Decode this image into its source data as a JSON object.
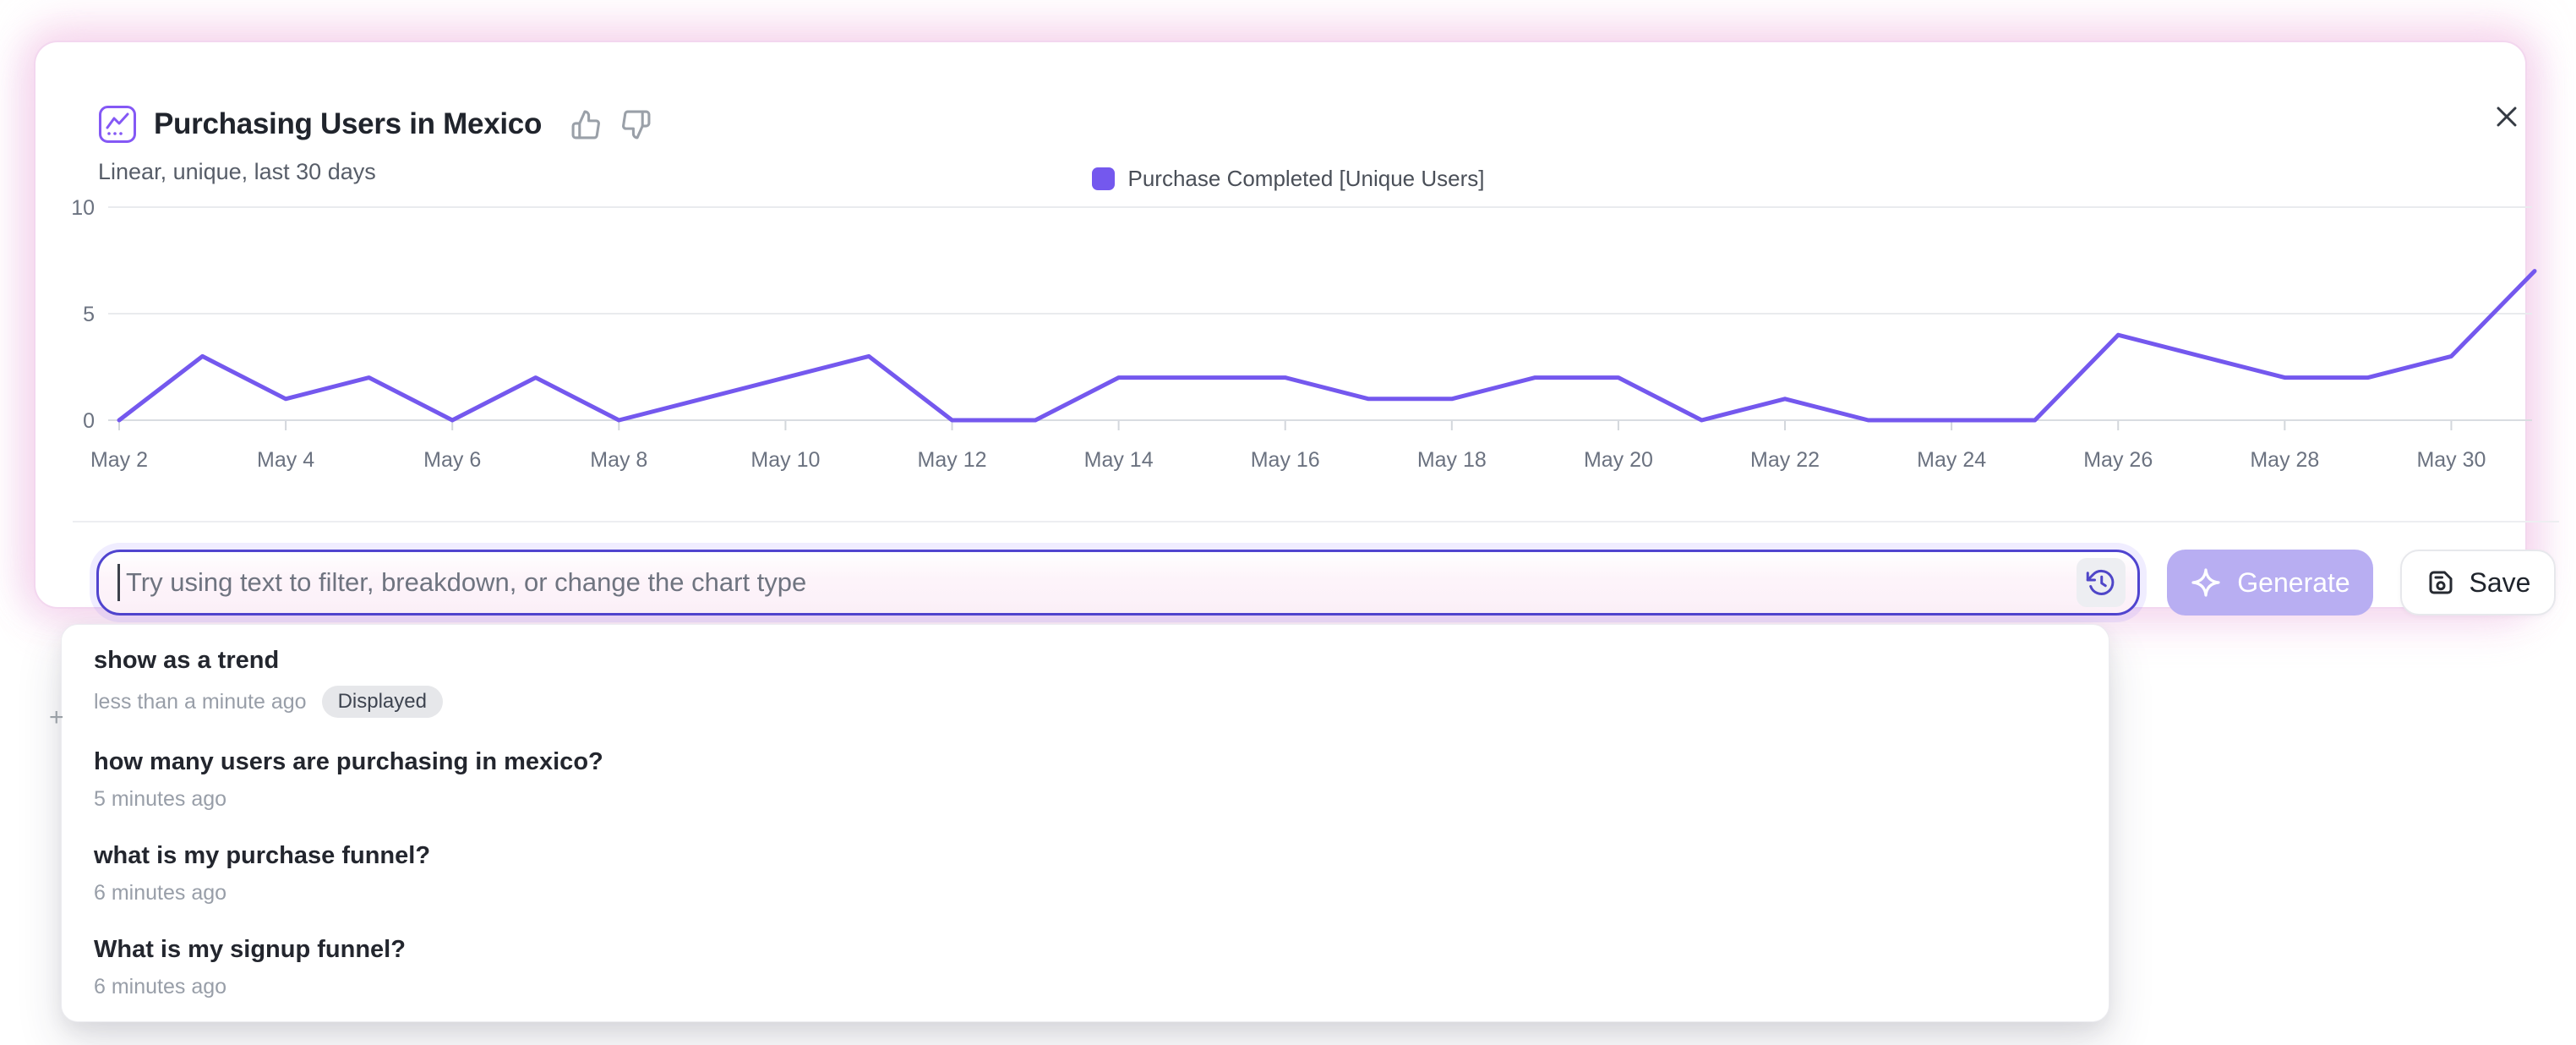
{
  "header": {
    "icon": "line-chart-icon",
    "title": "Purchasing Users in Mexico",
    "subtitle": "Linear, unique, last 30 days",
    "feedback_icons": [
      "thumbs-up-icon",
      "thumbs-down-icon"
    ],
    "close_icon": "close-icon"
  },
  "chart_data": {
    "type": "line",
    "title": "Purchasing Users in Mexico",
    "x": [
      "May 2",
      "May 3",
      "May 4",
      "May 5",
      "May 6",
      "May 7",
      "May 8",
      "May 9",
      "May 10",
      "May 11",
      "May 12",
      "May 13",
      "May 14",
      "May 15",
      "May 16",
      "May 17",
      "May 18",
      "May 19",
      "May 20",
      "May 21",
      "May 22",
      "May 23",
      "May 24",
      "May 25",
      "May 26",
      "May 27",
      "May 28",
      "May 29",
      "May 30",
      "May 31"
    ],
    "series": [
      {
        "name": "Purchase Completed [Unique Users]",
        "color": "#7458ee",
        "values": [
          0,
          3,
          1,
          2,
          0,
          2,
          0,
          1,
          2,
          3,
          0,
          0,
          2,
          2,
          2,
          1,
          1,
          2,
          2,
          0,
          1,
          0,
          0,
          0,
          4,
          3,
          2,
          2,
          3,
          7
        ]
      }
    ],
    "xticks_shown": [
      "May 2",
      "May 4",
      "May 6",
      "May 8",
      "May 10",
      "May 12",
      "May 14",
      "May 16",
      "May 18",
      "May 20",
      "May 22",
      "May 24",
      "May 26",
      "May 28",
      "May 30"
    ],
    "ylim": [
      0,
      10
    ],
    "yticks": [
      0,
      5,
      10
    ],
    "grid": "horizontal",
    "legend_position": "top-center"
  },
  "composer": {
    "placeholder": "Try using text to filter, breakdown, or change the chart type",
    "history_icon": "history-clock-icon",
    "generate": {
      "label": "Generate",
      "icon": "sparkle-icon",
      "enabled": false
    },
    "save": {
      "label": "Save",
      "icon": "save-icon"
    }
  },
  "history_dropdown": {
    "items": [
      {
        "query": "show as a trend",
        "time": "less than a minute ago",
        "badge": "Displayed"
      },
      {
        "query": "how many users are purchasing in mexico?",
        "time": "5 minutes ago"
      },
      {
        "query": "what is my purchase funnel?",
        "time": "6 minutes ago"
      },
      {
        "query": "What is my signup funnel?",
        "time": "6 minutes ago"
      }
    ]
  },
  "cursor": {
    "glyph": "+"
  },
  "colors": {
    "accent_purple": "#7458ee",
    "input_border": "#5044cf",
    "generate_bg": "#b8aef2",
    "glow_pink": "#f6cde7"
  }
}
